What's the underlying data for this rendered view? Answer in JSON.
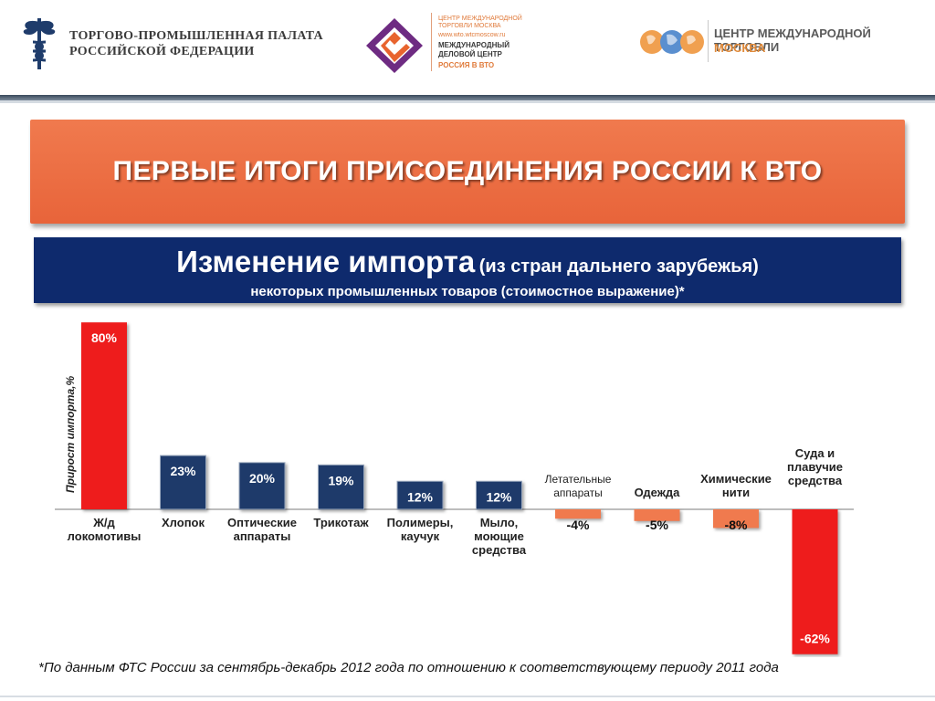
{
  "header": {
    "chamber_line1": "ТОРГОВО-ПРОМЫШЛЕННАЯ ПАЛАТА",
    "chamber_line2": "РОССИЙСКОЙ ФЕДЕРАЦИИ",
    "center_small1": "ЦЕНТР МЕЖДУНАРОДНОЙ",
    "center_small2": "ТОРГОВЛИ МОСКВА",
    "center_url": "www.wto.wtcmoscow.ru",
    "center_bold1": "МЕЖДУНАРОДНЫЙ",
    "center_bold2": "ДЕЛОВОЙ ЦЕНТР",
    "center_orange": "РОССИЯ В ВТО",
    "wtc_line1": "ЦЕНТР МЕЖДУНАРОДНОЙ ТОРГОВЛИ",
    "wtc_line2": "МОСКВА"
  },
  "banner": {
    "title": "ПЕРВЫЕ ИТОГИ ПРИСОЕДИНЕНИЯ РОССИИ К ВТО"
  },
  "subtitle": {
    "main": "Изменение импорта",
    "paren": "(из стран дальнего зарубежья)",
    "line2": "некоторых промышленных товаров (стоимостное выражение)*"
  },
  "footnote": "*По данным ФТС России за сентябрь-декабрь 2012 года по отношению к соответствующему периоду 2011 года",
  "colors": {
    "red": "#ee1c1c",
    "navy": "#1e3a6a",
    "orange": "#f07a4e",
    "box_blue": "#0e2a6d"
  },
  "chart_data": {
    "type": "bar",
    "ylabel": "Прирост импорта,%",
    "categories": [
      [
        "Ж/д",
        "локомотивы"
      ],
      [
        "Хлопок"
      ],
      [
        "Оптические",
        "аппараты"
      ],
      [
        "Трикотаж"
      ],
      [
        "Полимеры,",
        "каучук"
      ],
      [
        "Мыло,",
        "моющие",
        "средства"
      ],
      [
        "Летательные",
        "аппараты"
      ],
      [
        "Одежда"
      ],
      [
        "Химические",
        "нити"
      ],
      [
        "Суда и",
        "плавучие",
        "средства"
      ]
    ],
    "values": [
      80,
      23,
      20,
      19,
      12,
      12,
      -4,
      -5,
      -8,
      -62
    ],
    "value_labels": [
      "80%",
      "23%",
      "20%",
      "19%",
      "12%",
      "12%",
      "-4%",
      "-5%",
      "-8%",
      "-62%"
    ],
    "bar_colors": [
      "#ee1c1c",
      "#1e3a6a",
      "#1e3a6a",
      "#1e3a6a",
      "#1e3a6a",
      "#1e3a6a",
      "#f07a4e",
      "#f07a4e",
      "#f07a4e",
      "#ee1c1c"
    ]
  }
}
